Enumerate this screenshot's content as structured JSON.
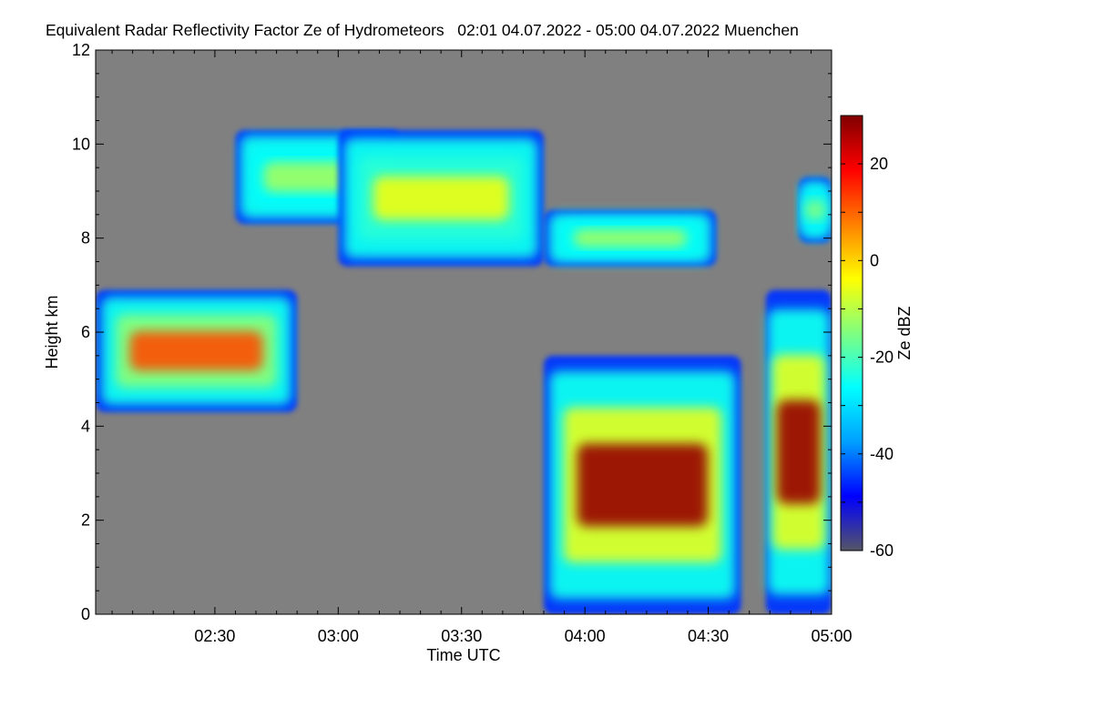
{
  "chart_data": {
    "type": "heatmap",
    "title": "Equivalent Radar Reflectivity Factor Ze of Hydrometeors   02:01 04.07.2022 - 05:00 04.07.2022 Muenchen",
    "xlabel": "Time UTC",
    "ylabel": "Height km",
    "x_range": [
      "02:01",
      "05:00"
    ],
    "x_ticks": [
      "02:30",
      "03:00",
      "03:30",
      "04:00",
      "04:30",
      "05:00"
    ],
    "ylim": [
      0,
      12
    ],
    "y_ticks": [
      "0",
      "2",
      "4",
      "6",
      "8",
      "10",
      "12"
    ],
    "colorbar": {
      "label": "Ze dBZ",
      "range": [
        -60,
        30
      ],
      "ticks": [
        "-60",
        "-40",
        "-20",
        "0",
        "20"
      ],
      "colormap": [
        "#555566",
        "#0000ff",
        "#00a0ff",
        "#00ffff",
        "#80ff80",
        "#ffff00",
        "#ff8000",
        "#ff0000",
        "#800000"
      ]
    },
    "background_color": "#808080",
    "echoes": [
      {
        "t_start": "02:01",
        "t_end": "02:50",
        "z_bottom": 4.3,
        "z_top": 6.9,
        "ze_max": 12
      },
      {
        "t_start": "02:35",
        "t_end": "03:15",
        "z_bottom": 8.3,
        "z_top": 10.3,
        "ze_max": -12
      },
      {
        "t_start": "03:00",
        "t_end": "03:50",
        "z_bottom": 7.4,
        "z_top": 10.3,
        "ze_max": -5
      },
      {
        "t_start": "03:50",
        "t_end": "04:32",
        "z_bottom": 7.4,
        "z_top": 8.6,
        "ze_max": -12
      },
      {
        "t_start": "04:52",
        "t_end": "05:00",
        "z_bottom": 7.9,
        "z_top": 9.3,
        "ze_max": -15
      },
      {
        "t_start": "03:50",
        "t_end": "04:38",
        "z_bottom": 0.0,
        "z_top": 5.5,
        "ze_max": 28
      },
      {
        "t_start": "04:44",
        "t_end": "05:00",
        "z_bottom": 0.0,
        "z_top": 6.9,
        "ze_max": 28
      }
    ]
  }
}
